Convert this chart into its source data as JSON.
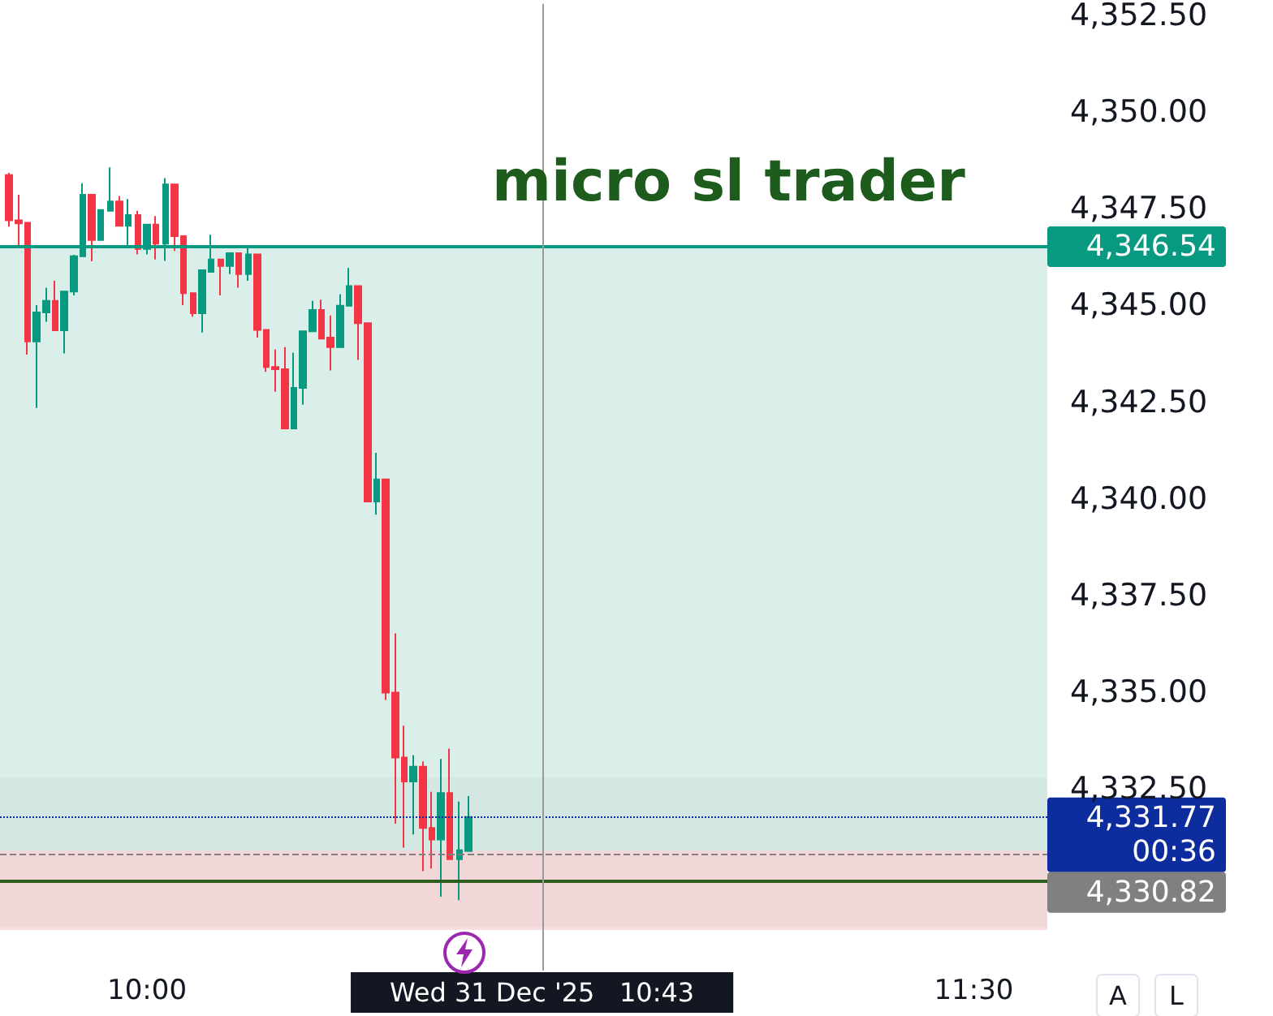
{
  "chart_data": {
    "type": "candlestick",
    "title": "micro sl trader",
    "x": [
      "2025-12-31T09:45",
      "2025-12-31T09:46",
      "2025-12-31T09:47",
      "2025-12-31T09:48",
      "2025-12-31T09:49",
      "2025-12-31T09:50",
      "2025-12-31T09:51",
      "2025-12-31T09:52",
      "2025-12-31T09:53",
      "2025-12-31T09:54",
      "2025-12-31T09:55",
      "2025-12-31T09:56",
      "2025-12-31T09:57",
      "2025-12-31T09:58",
      "2025-12-31T09:59",
      "2025-12-31T10:00",
      "2025-12-31T10:01",
      "2025-12-31T10:02",
      "2025-12-31T10:03",
      "2025-12-31T10:04",
      "2025-12-31T10:05",
      "2025-12-31T10:06",
      "2025-12-31T10:07",
      "2025-12-31T10:08",
      "2025-12-31T10:09",
      "2025-12-31T10:10",
      "2025-12-31T10:11",
      "2025-12-31T10:12",
      "2025-12-31T10:13",
      "2025-12-31T10:14",
      "2025-12-31T10:15",
      "2025-12-31T10:16",
      "2025-12-31T10:17",
      "2025-12-31T10:18",
      "2025-12-31T10:19",
      "2025-12-31T10:20",
      "2025-12-31T10:21",
      "2025-12-31T10:22",
      "2025-12-31T10:23",
      "2025-12-31T10:24",
      "2025-12-31T10:25",
      "2025-12-31T10:26",
      "2025-12-31T10:27",
      "2025-12-31T10:28",
      "2025-12-31T10:29",
      "2025-12-31T10:30",
      "2025-12-31T10:31",
      "2025-12-31T10:32",
      "2025-12-31T10:33",
      "2025-12-31T10:34",
      "2025-12-31T10:35"
    ],
    "ohlc": [
      [
        4348.37,
        4348.43,
        4347.04,
        4347.2
      ],
      [
        4347.2,
        4347.86,
        4346.49,
        4347.12
      ],
      [
        4347.14,
        4347.14,
        4343.73,
        4344.07
      ],
      [
        4344.07,
        4345.01,
        4342.35,
        4344.82
      ],
      [
        4344.82,
        4345.46,
        4344.58,
        4345.12
      ],
      [
        4345.12,
        4345.64,
        4344.36,
        4344.36
      ],
      [
        4344.36,
        4345.36,
        4343.76,
        4345.36
      ],
      [
        4345.36,
        4346.31,
        4345.26,
        4346.27
      ],
      [
        4346.27,
        4348.16,
        4346.27,
        4347.86
      ],
      [
        4347.86,
        4347.86,
        4346.14,
        4346.69
      ],
      [
        4346.69,
        4347.47,
        4346.69,
        4347.47
      ],
      [
        4347.45,
        4348.57,
        4347.45,
        4347.69
      ],
      [
        4347.69,
        4347.83,
        4347.06,
        4347.06
      ],
      [
        4347.06,
        4347.75,
        4346.55,
        4347.34
      ],
      [
        4347.34,
        4347.45,
        4346.32,
        4346.46
      ],
      [
        4346.46,
        4347.09,
        4346.32,
        4347.09
      ],
      [
        4347.09,
        4347.31,
        4346.19,
        4346.6
      ],
      [
        4346.6,
        4348.29,
        4346.15,
        4348.13
      ],
      [
        4348.13,
        4348.13,
        4346.41,
        4346.79
      ],
      [
        4346.79,
        4346.79,
        4345.01,
        4345.32
      ],
      [
        4345.32,
        4345.32,
        4344.71,
        4344.8
      ],
      [
        4344.8,
        4345.91,
        4344.3,
        4345.91
      ],
      [
        4345.87,
        4346.83,
        4345.87,
        4346.19
      ],
      [
        4346.19,
        4346.19,
        4345.26,
        4346.02
      ],
      [
        4346.02,
        4346.35,
        4345.81,
        4346.35
      ],
      [
        4346.35,
        4346.35,
        4345.46,
        4345.81
      ],
      [
        4345.81,
        4346.52,
        4345.64,
        4346.32
      ],
      [
        4346.32,
        4346.32,
        4344.17,
        4344.37
      ],
      [
        4344.37,
        4344.37,
        4343.28,
        4343.41
      ],
      [
        4343.41,
        4343.86,
        4342.77,
        4343.35
      ],
      [
        4343.35,
        4343.92,
        4341.82,
        4341.82
      ],
      [
        4341.82,
        4343.78,
        4341.82,
        4342.87
      ],
      [
        4342.87,
        4344.33,
        4342.43,
        4344.33
      ],
      [
        4344.33,
        4345.12,
        4344.33,
        4344.88
      ],
      [
        4344.88,
        4345.15,
        4344.14,
        4344.14
      ],
      [
        4344.17,
        4344.74,
        4343.32,
        4343.92
      ],
      [
        4343.92,
        4345.29,
        4343.92,
        4344.99
      ],
      [
        4344.99,
        4345.97,
        4344.99,
        4345.5
      ],
      [
        4345.5,
        4345.5,
        4343.59,
        4344.54
      ],
      [
        4344.54,
        4344.54,
        4339.93,
        4339.93
      ],
      [
        4339.93,
        4341.19,
        4339.59,
        4340.5
      ],
      [
        4340.5,
        4340.5,
        4334.8,
        4334.99
      ],
      [
        4334.99,
        4336.52,
        4331.6,
        4333.31
      ],
      [
        4333.31,
        4334.13,
        4330.98,
        4332.69
      ],
      [
        4332.69,
        4333.37,
        4331.32,
        4333.07
      ],
      [
        4333.07,
        4333.21,
        4330.37,
        4331.49
      ],
      [
        4331.49,
        4332.42,
        4330.44,
        4331.19
      ],
      [
        4331.19,
        4333.27,
        4329.71,
        4332.39
      ],
      [
        4332.39,
        4333.54,
        4330.68,
        4330.68
      ],
      [
        4330.68,
        4332.17,
        4329.62,
        4330.91
      ],
      [
        4330.89,
        4332.31,
        4330.89,
        4331.77
      ]
    ],
    "xlim": [
      "2025-12-31T09:44",
      "2025-12-31T11:38"
    ],
    "xticks": [
      {
        "value": "2025-12-31T10:00",
        "label": "10:00"
      },
      {
        "value": "2025-12-31T11:30",
        "label": "11:30"
      }
    ],
    "ylim": [
      4327.8,
      4352.8
    ],
    "yticks": [
      {
        "value": 4332.5,
        "label": "4,332.50"
      },
      {
        "value": 4335,
        "label": "4,335.00"
      },
      {
        "value": 4337.5,
        "label": "4,337.50"
      },
      {
        "value": 4340,
        "label": "4,340.00"
      },
      {
        "value": 4342.5,
        "label": "4,342.50"
      },
      {
        "value": 4345,
        "label": "4,345.00"
      },
      {
        "value": 4347.5,
        "label": "4,347.50"
      },
      {
        "value": 4350,
        "label": "4,350.00"
      },
      {
        "value": 4352.5,
        "label": "4,352.50"
      }
    ],
    "bands": [
      {
        "axis": "y",
        "from": 4328.93,
        "to": 4332.79,
        "color": "#d9d9d9"
      },
      {
        "axis": "y",
        "from": 4330.9,
        "to": 4346.54,
        "color": "#cde9e2"
      },
      {
        "axis": "y",
        "from": 4328.85,
        "to": 4330.9,
        "color": "#f7d3d6"
      }
    ],
    "ref_lines": [
      {
        "axis": "y",
        "value": 4346.54,
        "label": "4,346.54",
        "color": "#089981",
        "line_style": "solid"
      },
      {
        "axis": "y",
        "value": 4331.77,
        "label": "4,331.77\n00:36",
        "color": "#0d2d9e",
        "line_style": "dotted"
      },
      {
        "axis": "y",
        "value": 4330.82,
        "label": "4,330.82",
        "color": "#808080",
        "line_style": "dashed"
      },
      {
        "axis": "y",
        "value": 4330.12,
        "label": null,
        "color": "#2e5e1e",
        "line_style": "solid"
      },
      {
        "axis": "x",
        "value": "2025-12-31T10:43",
        "label": "Wed 31 Dec '25   10:43",
        "color": "#9a9a9a",
        "line_style": "solid"
      }
    ],
    "annotations": [
      "A",
      "L"
    ],
    "grid": false
  }
}
